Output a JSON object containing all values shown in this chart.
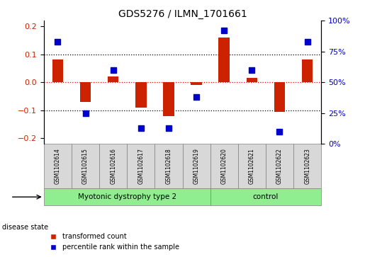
{
  "title": "GDS5276 / ILMN_1701661",
  "samples": [
    "GSM1102614",
    "GSM1102615",
    "GSM1102616",
    "GSM1102617",
    "GSM1102618",
    "GSM1102619",
    "GSM1102620",
    "GSM1102621",
    "GSM1102622",
    "GSM1102623"
  ],
  "red_values": [
    0.08,
    -0.07,
    0.02,
    -0.09,
    -0.12,
    -0.01,
    0.16,
    0.015,
    -0.105,
    0.08
  ],
  "blue_percentiles": [
    83,
    25,
    60,
    13,
    13,
    38,
    92,
    60,
    10,
    83
  ],
  "ylim_left": [
    -0.22,
    0.22
  ],
  "ylim_right": [
    0,
    100
  ],
  "yticks_left": [
    -0.2,
    -0.1,
    0.0,
    0.1,
    0.2
  ],
  "yticks_right": [
    0,
    25,
    50,
    75,
    100
  ],
  "red_color": "#cc2200",
  "blue_color": "#0000cc",
  "group1_label": "Myotonic dystrophy type 2",
  "group2_label": "control",
  "group1_indices": [
    0,
    1,
    2,
    3,
    4,
    5
  ],
  "group2_indices": [
    6,
    7,
    8,
    9
  ],
  "disease_state_label": "disease state",
  "legend_red": "transformed count",
  "legend_blue": "percentile rank within the sample",
  "group_color": "#90ee90",
  "sample_color": "#d8d8d8",
  "bar_width": 0.4,
  "marker_size": 6
}
